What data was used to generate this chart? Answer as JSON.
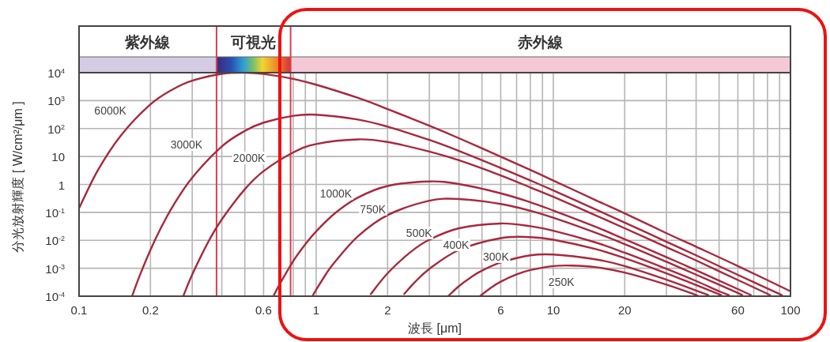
{
  "chart_data": {
    "type": "line",
    "xlabel": "波長 [μm]",
    "ylabel": "分光放射輝度 [ W/cm²/μm ]",
    "log": "xy",
    "grid": true,
    "xlim": [
      0.1,
      100
    ],
    "ylim": [
      0.0001,
      10000
    ],
    "xticks": [
      0.1,
      0.2,
      {
        "value": 0.3,
        "label": null
      },
      {
        "value": 0.4,
        "label": null
      },
      {
        "value": 0.5,
        "label": null
      },
      0.6,
      {
        "value": 0.7,
        "label": null
      },
      {
        "value": 0.8,
        "label": null
      },
      {
        "value": 0.9,
        "label": null
      },
      1,
      2,
      {
        "value": 3,
        "label": null
      },
      {
        "value": 4,
        "label": null
      },
      {
        "value": 5,
        "label": null
      },
      6,
      {
        "value": 7,
        "label": null
      },
      {
        "value": 8,
        "label": null
      },
      {
        "value": 9,
        "label": null
      },
      10,
      20,
      {
        "value": 30,
        "label": null
      },
      {
        "value": 40,
        "label": null
      },
      {
        "value": 50,
        "label": null
      },
      60,
      {
        "value": 70,
        "label": null
      },
      {
        "value": 80,
        "label": null
      },
      {
        "value": 90,
        "label": null
      },
      100
    ],
    "yticks": [
      {
        "value": 0.0001,
        "label": "10$^{-4}$"
      },
      {
        "value": 0.001,
        "label": "10$^{-3}$"
      },
      {
        "value": 0.01,
        "label": "10$^{-2}$"
      },
      {
        "value": 0.1,
        "label": "10$^{-1}$"
      },
      1,
      10,
      {
        "value": 100,
        "label": "10$^{2}$"
      },
      {
        "value": 1000,
        "label": "10$^{3}$"
      },
      {
        "value": 10000,
        "label": "10$^{4}$"
      }
    ],
    "annotations": [
      "紫外線",
      "可視光",
      "赤外線"
    ],
    "ref_lines": [
      {
        "axis": "x",
        "value": 0.38,
        "color": "#d8414f"
      },
      {
        "axis": "x",
        "value": 0.78,
        "color": "#d8414f"
      }
    ],
    "series": [
      {
        "name": "6000K",
        "color": "#a8283c",
        "x": [
          0.1,
          0.12,
          0.15,
          0.2,
          0.25,
          0.3,
          0.4,
          0.5,
          0.6,
          0.8,
          1,
          1.5,
          2,
          3,
          4,
          6,
          8,
          10,
          15,
          20,
          30,
          40,
          60,
          100
        ],
        "values": [
          0.14,
          3.2,
          56,
          730,
          2600,
          5200,
          9100,
          10000,
          9000,
          6000,
          3700,
          1250,
          500,
          126,
          45,
          9.8,
          3.3,
          1.38,
          0.28,
          0.092,
          0.018,
          0.0059,
          0.0012,
          0.00015
        ]
      },
      {
        "name": "3000K",
        "color": "#a8283c",
        "x": [
          0.168,
          0.18,
          0.2,
          0.22,
          0.25,
          0.3,
          0.4,
          0.5,
          0.6,
          0.8,
          1,
          1.5,
          2,
          3,
          4,
          6,
          8,
          10,
          15,
          20,
          30,
          40,
          60,
          92
        ],
        "values": [
          0.00011,
          0.00053,
          0.0045,
          0.025,
          0.18,
          1.75,
          23,
          82,
          163,
          286,
          312,
          210,
          117,
          39,
          15.8,
          3.9,
          1.39,
          0.61,
          0.13,
          0.043,
          0.0089,
          0.0029,
          0.00058,
          0.00011
        ]
      },
      {
        "name": "2000K",
        "color": "#a8283c",
        "x": [
          0.275,
          0.3,
          0.35,
          0.4,
          0.5,
          0.6,
          0.8,
          1,
          1.5,
          2,
          3,
          4,
          6,
          8,
          10,
          15,
          20,
          30,
          40,
          60,
          82
        ],
        "values": [
          0.0001,
          0.00059,
          0.0085,
          0.056,
          0.67,
          3.0,
          14,
          28,
          41,
          33,
          15,
          7.3,
          2.1,
          0.78,
          0.36,
          0.08,
          0.027,
          0.0057,
          0.0019,
          0.00038,
          0.00011
        ]
      },
      {
        "name": "1000K",
        "color": "#a8283c",
        "x": [
          0.66,
          0.7,
          0.8,
          0.9,
          1,
          1.2,
          1.5,
          2,
          3,
          4,
          6,
          8,
          10,
          15,
          20,
          30,
          40,
          60,
          68
        ],
        "values": [
          0.0001,
          0.00026,
          0.0018,
          0.0072,
          0.021,
          0.093,
          0.34,
          0.88,
          1.28,
          1.03,
          0.48,
          0.23,
          0.116,
          0.031,
          0.011,
          0.0025,
          0.00085,
          0.00018,
          0.00011
        ]
      },
      {
        "name": "750K",
        "color": "#a8283c",
        "x": [
          0.97,
          1,
          1.1,
          1.2,
          1.5,
          2,
          3,
          4,
          6,
          8,
          10,
          15,
          20,
          30,
          40,
          60,
          62
        ],
        "values": [
          0.00011,
          0.00017,
          0.00062,
          0.0017,
          0.014,
          0.08,
          0.26,
          0.3,
          0.2,
          0.114,
          0.064,
          0.019,
          0.0073,
          0.0017,
          0.00059,
          0.00013,
          0.00011
        ]
      },
      {
        "name": "500K",
        "color": "#a8283c",
        "x": [
          1.7,
          2,
          2.5,
          3,
          4,
          6,
          8,
          10,
          15,
          20,
          30,
          40,
          50,
          55
        ],
        "values": [
          0.00012,
          0.00066,
          0.0038,
          0.0105,
          0.027,
          0.04,
          0.032,
          0.022,
          0.0085,
          0.0036,
          0.00095,
          0.00035,
          0.00015,
          0.00011
        ]
      },
      {
        "name": "400K",
        "color": "#a8283c",
        "x": [
          2.35,
          2.6,
          3,
          4,
          6,
          8,
          10,
          15,
          20,
          30,
          40,
          51
        ],
        "values": [
          0.00012,
          0.00031,
          0.00095,
          0.0045,
          0.012,
          0.013,
          0.0105,
          0.0049,
          0.0023,
          0.00066,
          0.00025,
          0.00011
        ]
      },
      {
        "name": "300K",
        "color": "#a8283c",
        "x": [
          3.6,
          4,
          4.5,
          5,
          6,
          8,
          10,
          15,
          20,
          30,
          40,
          45
        ],
        "values": [
          0.0001,
          0.00023,
          0.00048,
          0.00082,
          0.0016,
          0.0029,
          0.0031,
          0.0021,
          0.0012,
          0.00039,
          0.00016,
          0.00011
        ]
      },
      {
        "name": "250K",
        "color": "#a8283c",
        "x": [
          4.9,
          5.5,
          6,
          7,
          8,
          10,
          12,
          15,
          20,
          30,
          40,
          41
        ],
        "values": [
          0.0001,
          0.00021,
          0.00033,
          0.0006,
          0.00086,
          0.0012,
          0.00125,
          0.0011,
          0.0007,
          0.00026,
          0.00011,
          0.0001
        ]
      }
    ]
  }
}
